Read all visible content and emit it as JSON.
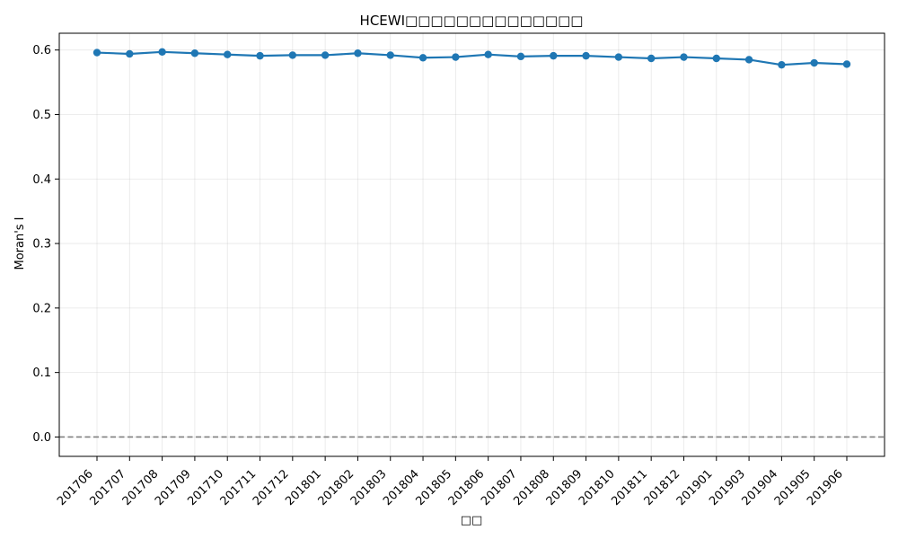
{
  "chart_data": {
    "type": "line",
    "title": "HCEWI□□□□□□□□□□□□□□",
    "xlabel": "□□",
    "ylabel": "Moran's I",
    "categories": [
      "201706",
      "201707",
      "201708",
      "201709",
      "201710",
      "201711",
      "201712",
      "201801",
      "201802",
      "201803",
      "201804",
      "201805",
      "201806",
      "201807",
      "201808",
      "201809",
      "201810",
      "201811",
      "201812",
      "201901",
      "201903",
      "201904",
      "201905",
      "201906"
    ],
    "series": [
      {
        "values": [
          0.596,
          0.594,
          0.597,
          0.595,
          0.593,
          0.591,
          0.592,
          0.592,
          0.595,
          0.592,
          0.588,
          0.589,
          0.593,
          0.59,
          0.591,
          0.591,
          0.589,
          0.587,
          0.589,
          0.587,
          0.585,
          0.577,
          0.58,
          0.578
        ],
        "color": "#1f77b4"
      }
    ],
    "ylim": [
      -0.03,
      0.626
    ],
    "yticks": [
      0.0,
      0.1,
      0.2,
      0.3,
      0.4,
      0.5,
      0.6
    ],
    "reference_line": {
      "y": 0.0,
      "style": "dashed",
      "color": "#808080"
    },
    "grid": true,
    "legend": "none"
  }
}
